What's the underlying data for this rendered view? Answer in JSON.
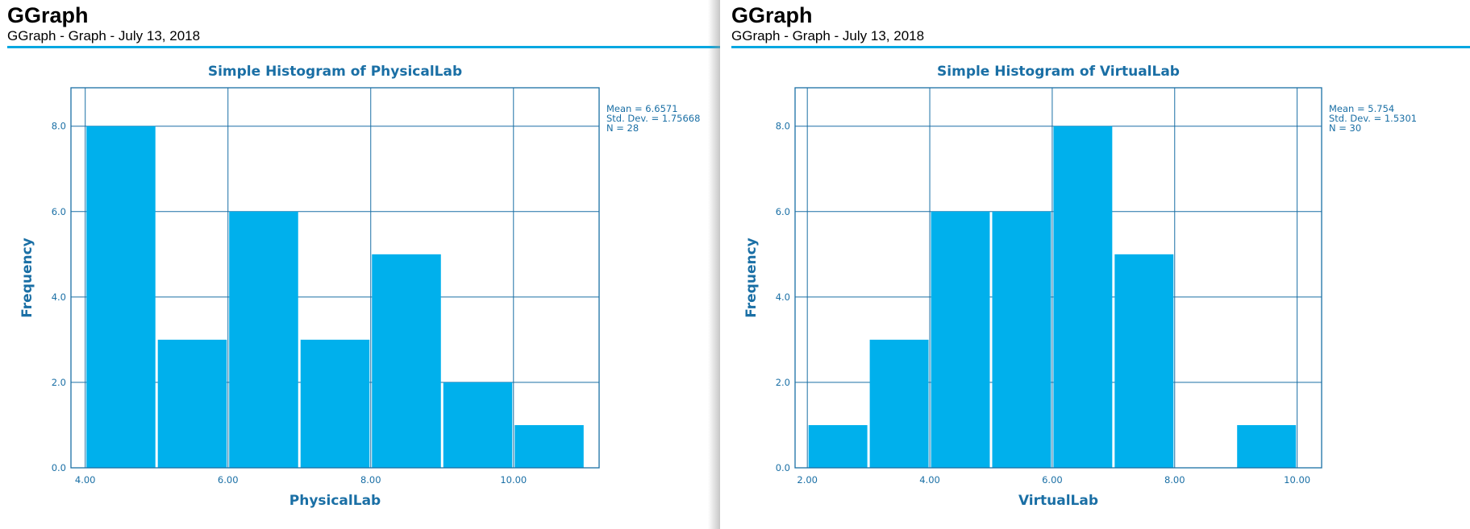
{
  "pages": [
    {
      "header": {
        "title": "GGraph",
        "subtitle": "GGraph - Graph - July 13, 2018"
      },
      "stats": [
        "Mean = 6.6571",
        "Std. Dev. = 1.75668",
        "N = 28"
      ]
    },
    {
      "header": {
        "title": "GGraph",
        "subtitle": "GGraph - Graph - July 13, 2018"
      },
      "stats": [
        "Mean = 5.754",
        "Std. Dev. = 1.5301",
        "N = 30"
      ]
    }
  ],
  "colors": {
    "bar": "#00b0ec",
    "axis": "#1a6fa5",
    "rule": "#00a7e1"
  },
  "chart_data": [
    {
      "type": "bar",
      "title": "Simple Histogram of PhysicalLab",
      "xlabel": "PhysicalLab",
      "ylabel": "Frequency",
      "bin_width": 1.0,
      "bin_starts": [
        4.0,
        5.0,
        6.0,
        7.0,
        8.0,
        9.0,
        10.0
      ],
      "values": [
        8,
        3,
        6,
        3,
        5,
        2,
        1
      ],
      "xlim": [
        3.8,
        11.2
      ],
      "ylim": [
        0,
        8.9
      ],
      "x_ticks": [
        4.0,
        6.0,
        8.0,
        10.0
      ],
      "x_tick_labels": [
        "4.00",
        "6.00",
        "8.00",
        "10.00"
      ],
      "y_ticks": [
        0,
        2,
        4,
        6,
        8
      ],
      "y_tick_labels": [
        "0.0",
        "2.0",
        "4.0",
        "6.0",
        "8.0"
      ],
      "grid": true,
      "legend": "none"
    },
    {
      "type": "bar",
      "title": "Simple Histogram of VirtualLab",
      "xlabel": "VirtualLab",
      "ylabel": "Frequency",
      "bin_width": 1.0,
      "bin_starts": [
        2.0,
        3.0,
        4.0,
        5.0,
        6.0,
        7.0,
        8.0,
        9.0
      ],
      "values": [
        1,
        3,
        6,
        6,
        8,
        5,
        0,
        1
      ],
      "xlim": [
        1.8,
        10.4
      ],
      "ylim": [
        0,
        8.9
      ],
      "x_ticks": [
        2.0,
        4.0,
        6.0,
        8.0,
        10.0
      ],
      "x_tick_labels": [
        "2.00",
        "4.00",
        "6.00",
        "8.00",
        "10.00"
      ],
      "y_ticks": [
        0,
        2,
        4,
        6,
        8
      ],
      "y_tick_labels": [
        "0.0",
        "2.0",
        "4.0",
        "6.0",
        "8.0"
      ],
      "grid": true,
      "legend": "none"
    }
  ]
}
